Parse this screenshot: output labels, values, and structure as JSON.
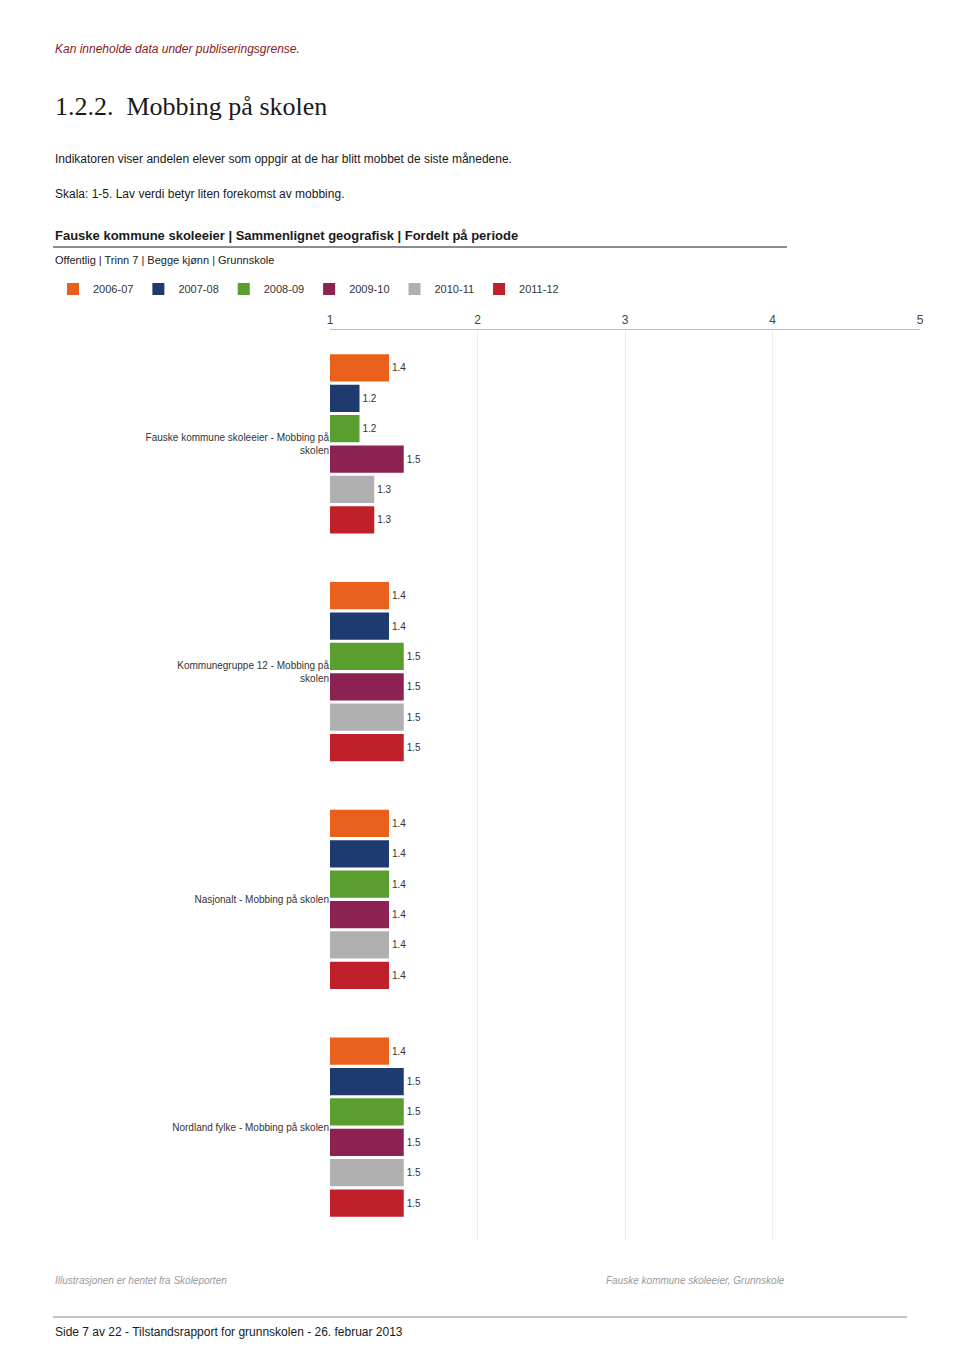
{
  "chart_data": {
    "type": "bar",
    "orientation": "horizontal",
    "title": "Fauske kommune skoleeier | Sammenlignet geografisk | Fordelt på periode",
    "subtitle": "Offentlig | Trinn 7 | Begge kjønn | Grunnskole",
    "annotations": [
      "Kan inneholde data under publiseringsgrense.",
      "1.2.2.  Mobbing på skolen",
      "Indikatoren viser andelen elever som oppgir at de har blitt mobbet de siste månedene.",
      "Skala: 1-5. Lav verdi betyr liten forekomst av mobbing.",
      "Illustrasjonen er hentet fra Skoleporten",
      "Fauske kommune skoleeier, Grunnskole",
      "Side 7 av 22 - Tilstandsrapport for grunnskolen - 26. februar 2013"
    ],
    "categories": [
      "Fauske kommune skoleeier - Mobbing på\nskolen",
      "Kommunegruppe 12 - Mobbing på\nskolen",
      "Nasjonalt - Mobbing på skolen",
      "Nordland fylke - Mobbing på skolen"
    ],
    "series": [
      {
        "name": "2006-07",
        "color": "#e8601c",
        "values": [
          1.4,
          1.4,
          1.4,
          1.4
        ]
      },
      {
        "name": "2007-08",
        "color": "#1f3a6e",
        "values": [
          1.2,
          1.4,
          1.4,
          1.5
        ]
      },
      {
        "name": "2008-09",
        "color": "#5a9e2f",
        "values": [
          1.2,
          1.5,
          1.4,
          1.5
        ]
      },
      {
        "name": "2009-10",
        "color": "#8b2252",
        "values": [
          1.5,
          1.5,
          1.4,
          1.5
        ]
      },
      {
        "name": "2010-11",
        "color": "#b0b0b0",
        "values": [
          1.3,
          1.5,
          1.4,
          1.5
        ]
      },
      {
        "name": "2011-12",
        "color": "#c0202a",
        "values": [
          1.3,
          1.5,
          1.4,
          1.5
        ]
      }
    ],
    "xlim": [
      1,
      5
    ],
    "xticks": [
      1,
      2,
      3,
      4,
      5
    ],
    "grid": true,
    "legend": "top",
    "data_labels": true
  }
}
